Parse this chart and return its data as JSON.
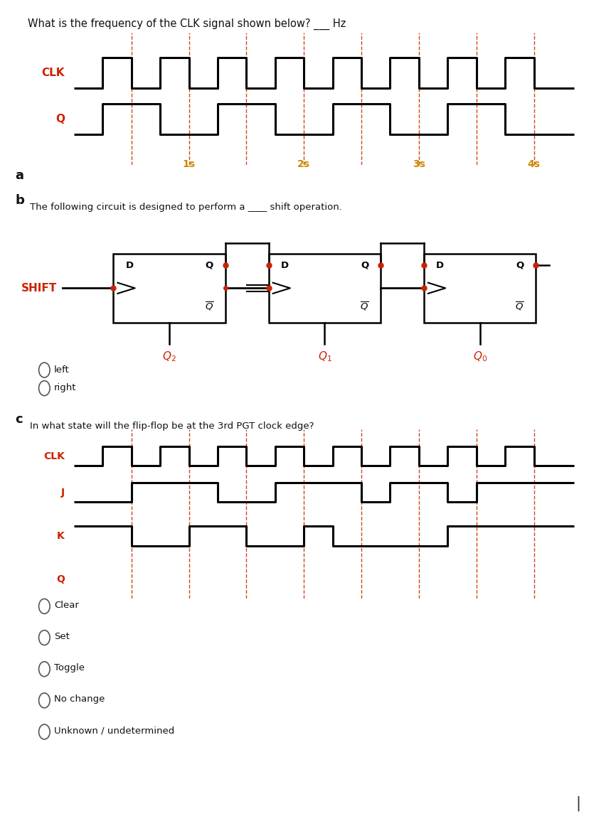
{
  "title_a": "What is the frequency of the CLK signal shown below? ___ Hz",
  "signal_color": "#000000",
  "red_color": "#cc2200",
  "dashed_color": "#cc3300",
  "time_label_color": "#cc8800",
  "bg_color": "#ffffff",
  "part_b_text": "The following circuit is designed to perform a ____ shift operation.",
  "part_c_text": "In what state will the flip-flop be at the 3rd PGT clock edge?",
  "radio_options_b": [
    "left",
    "right"
  ],
  "radio_options_c": [
    "Clear",
    "Set",
    "Toggle",
    "No change",
    "Unknown / undetermined"
  ],
  "clk_a_t": [
    0.0,
    0.25,
    0.25,
    0.5,
    0.5,
    0.75,
    0.75,
    1.0,
    1.0,
    1.25,
    1.25,
    1.5,
    1.5,
    1.75,
    1.75,
    2.0,
    2.0,
    2.25,
    2.25,
    2.5,
    2.5,
    2.75,
    2.75,
    3.0,
    3.0,
    3.25,
    3.25,
    3.5,
    3.5,
    3.75,
    3.75,
    4.0,
    4.0,
    4.35
  ],
  "clk_a_v": [
    0.0,
    0.0,
    1.0,
    1.0,
    0.0,
    0.0,
    1.0,
    1.0,
    0.0,
    0.0,
    1.0,
    1.0,
    0.0,
    0.0,
    1.0,
    1.0,
    0.0,
    0.0,
    1.0,
    1.0,
    0.0,
    0.0,
    1.0,
    1.0,
    0.0,
    0.0,
    1.0,
    1.0,
    0.0,
    0.0,
    1.0,
    1.0,
    0.0,
    1.0
  ],
  "q_a_t": [
    0.0,
    0.25,
    0.25,
    0.75,
    0.75,
    1.25,
    1.25,
    1.75,
    1.75,
    2.25,
    2.25,
    2.75,
    2.75,
    3.25,
    3.25,
    3.75,
    3.75,
    4.35
  ],
  "q_a_v": [
    -1.5,
    -1.5,
    -0.5,
    -0.5,
    -1.5,
    -1.5,
    -0.5,
    -0.5,
    -1.5,
    -1.5,
    -0.5,
    -0.5,
    -1.5,
    -1.5,
    -0.5,
    -0.5,
    -1.5,
    -0.5
  ],
  "dashed_x": [
    0.5,
    1.0,
    1.5,
    2.0,
    2.5,
    3.0,
    3.5,
    4.0
  ],
  "time_labels": [
    [
      "1s",
      1.0
    ],
    [
      "2s",
      2.0
    ],
    [
      "3s",
      3.0
    ],
    [
      "4s",
      4.0
    ]
  ],
  "clk_c_t": [
    0.0,
    0.25,
    0.25,
    0.5,
    0.5,
    0.75,
    0.75,
    1.0,
    1.0,
    1.25,
    1.25,
    1.5,
    1.5,
    1.75,
    1.75,
    2.0,
    2.0,
    2.25,
    2.25,
    2.5,
    2.5,
    2.75,
    2.75,
    3.0,
    3.0,
    3.25,
    3.25,
    3.5,
    3.5,
    3.75,
    3.75,
    4.0,
    4.0,
    4.35
  ],
  "clk_c_v": [
    0.0,
    0.0,
    1.0,
    1.0,
    0.0,
    0.0,
    1.0,
    1.0,
    0.0,
    0.0,
    1.0,
    1.0,
    0.0,
    0.0,
    1.0,
    1.0,
    0.0,
    0.0,
    1.0,
    1.0,
    0.0,
    0.0,
    1.0,
    1.0,
    0.0,
    0.0,
    1.0,
    1.0,
    0.0,
    0.0,
    1.0,
    1.0,
    0.0,
    1.0
  ],
  "j_t": [
    0.0,
    0.5,
    0.5,
    1.25,
    1.25,
    1.75,
    1.75,
    2.5,
    2.5,
    2.75,
    2.75,
    3.25,
    3.25,
    3.5,
    3.5,
    4.35
  ],
  "j_v": [
    0.0,
    0.0,
    1.0,
    1.0,
    0.0,
    0.0,
    1.0,
    1.0,
    0.0,
    0.0,
    1.0,
    1.0,
    0.0,
    0.0,
    1.0,
    1.0
  ],
  "k_t": [
    0.0,
    0.5,
    0.5,
    1.0,
    1.0,
    1.5,
    1.5,
    2.0,
    2.0,
    2.25,
    2.25,
    3.25,
    3.25,
    4.35
  ],
  "k_v": [
    1.0,
    1.0,
    0.0,
    0.0,
    1.0,
    1.0,
    0.0,
    0.0,
    1.0,
    1.0,
    0.0,
    0.0,
    1.0,
    1.0
  ]
}
